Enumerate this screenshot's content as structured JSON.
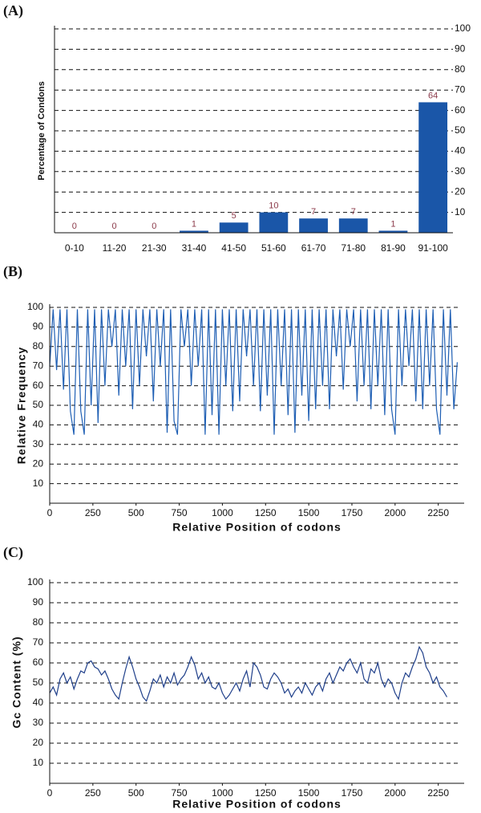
{
  "chart_data": [
    {
      "type": "bar",
      "panel": "(A)",
      "ylabel": "Percentage of Condons",
      "categories": [
        "0-10",
        "11-20",
        "21-30",
        "31-40",
        "41-50",
        "51-60",
        "61-70",
        "71-80",
        "81-90",
        "91-100"
      ],
      "values": [
        0,
        0,
        0,
        1,
        5,
        10,
        7,
        7,
        1,
        64
      ],
      "color": "#1a56a8",
      "ylim": [
        0,
        100
      ],
      "yticks": [
        10,
        20,
        30,
        40,
        50,
        60,
        70,
        80,
        90,
        100
      ],
      "grid": true,
      "ytick_side": "right"
    },
    {
      "type": "line",
      "panel": "(B)",
      "xlabel": "Relative Position  of codons",
      "ylabel": "Relative Frequency",
      "color": "#1f5fb4",
      "x": [
        0,
        20,
        40,
        60,
        80,
        100,
        120,
        140,
        160,
        180,
        200,
        220,
        240,
        260,
        280,
        300,
        320,
        340,
        360,
        380,
        400,
        420,
        440,
        460,
        480,
        500,
        520,
        540,
        560,
        580,
        600,
        620,
        640,
        660,
        680,
        700,
        720,
        740,
        760,
        780,
        800,
        820,
        840,
        860,
        880,
        900,
        920,
        940,
        960,
        980,
        1000,
        1020,
        1040,
        1060,
        1080,
        1100,
        1120,
        1140,
        1160,
        1180,
        1200,
        1220,
        1240,
        1260,
        1280,
        1300,
        1320,
        1340,
        1360,
        1380,
        1400,
        1420,
        1440,
        1460,
        1480,
        1500,
        1520,
        1540,
        1560,
        1580,
        1600,
        1620,
        1640,
        1660,
        1680,
        1700,
        1720,
        1740,
        1760,
        1780,
        1800,
        1820,
        1840,
        1860,
        1880,
        1900,
        1920,
        1940,
        1960,
        1980,
        2000,
        2020,
        2040,
        2060,
        2080,
        2100,
        2120,
        2140,
        2160,
        2180,
        2200,
        2220,
        2240,
        2260,
        2280,
        2300,
        2320,
        2340,
        2360
      ],
      "values": [
        70,
        99,
        68,
        99,
        58,
        99,
        47,
        35,
        99,
        47,
        35,
        99,
        50,
        99,
        41,
        99,
        60,
        99,
        80,
        99,
        55,
        99,
        70,
        99,
        48,
        99,
        60,
        99,
        75,
        99,
        52,
        99,
        70,
        99,
        36,
        99,
        42,
        35,
        99,
        80,
        99,
        60,
        99,
        70,
        99,
        35,
        99,
        45,
        99,
        35,
        99,
        60,
        99,
        47,
        99,
        52,
        99,
        75,
        99,
        60,
        99,
        47,
        99,
        55,
        99,
        35,
        99,
        60,
        99,
        45,
        99,
        36,
        99,
        55,
        99,
        42,
        99,
        48,
        99,
        60,
        99,
        48,
        99,
        75,
        99,
        58,
        99,
        80,
        99,
        52,
        99,
        60,
        99,
        48,
        99,
        60,
        99,
        45,
        99,
        48,
        35,
        99,
        60,
        99,
        70,
        99,
        52,
        99,
        48,
        99,
        60,
        99,
        48,
        35,
        99,
        55,
        99,
        48,
        72
      ],
      "xlim": [
        0,
        2400
      ],
      "ylim": [
        0,
        100
      ],
      "xticks": [
        0,
        250,
        500,
        750,
        1000,
        1250,
        1500,
        1750,
        2000,
        2250
      ],
      "yticks": [
        10,
        20,
        30,
        40,
        50,
        60,
        70,
        80,
        90,
        100
      ],
      "grid": true
    },
    {
      "type": "line",
      "panel": "(C)",
      "xlabel": "Relative Position  of codons",
      "ylabel": "Gc Content (%)",
      "color": "#1f3f8a",
      "x": [
        0,
        20,
        40,
        60,
        80,
        100,
        120,
        140,
        160,
        180,
        200,
        220,
        240,
        260,
        280,
        300,
        320,
        340,
        360,
        380,
        400,
        420,
        440,
        460,
        480,
        500,
        520,
        540,
        560,
        580,
        600,
        620,
        640,
        660,
        680,
        700,
        720,
        740,
        760,
        780,
        800,
        820,
        840,
        860,
        880,
        900,
        920,
        940,
        960,
        980,
        1000,
        1020,
        1040,
        1060,
        1080,
        1100,
        1120,
        1140,
        1160,
        1180,
        1200,
        1220,
        1240,
        1260,
        1280,
        1300,
        1320,
        1340,
        1360,
        1380,
        1400,
        1420,
        1440,
        1460,
        1480,
        1500,
        1520,
        1540,
        1560,
        1580,
        1600,
        1620,
        1640,
        1660,
        1680,
        1700,
        1720,
        1740,
        1760,
        1780,
        1800,
        1820,
        1840,
        1860,
        1880,
        1900,
        1920,
        1940,
        1960,
        1980,
        2000,
        2020,
        2040,
        2060,
        2080,
        2100,
        2120,
        2140,
        2160,
        2180,
        2200,
        2220,
        2240,
        2260,
        2280,
        2300
      ],
      "values": [
        45,
        48,
        44,
        52,
        55,
        50,
        53,
        47,
        52,
        56,
        55,
        60,
        61,
        58,
        57,
        54,
        56,
        52,
        47,
        44,
        42,
        50,
        57,
        63,
        58,
        52,
        48,
        43,
        41,
        46,
        52,
        50,
        54,
        48,
        53,
        50,
        55,
        49,
        52,
        54,
        58,
        63,
        59,
        52,
        55,
        50,
        53,
        48,
        47,
        50,
        45,
        42,
        44,
        47,
        50,
        46,
        52,
        56,
        48,
        60,
        58,
        54,
        48,
        47,
        52,
        55,
        53,
        50,
        45,
        47,
        43,
        46,
        48,
        45,
        50,
        47,
        44,
        48,
        50,
        46,
        52,
        55,
        50,
        54,
        58,
        56,
        60,
        62,
        58,
        55,
        60,
        52,
        50,
        57,
        55,
        60,
        52,
        48,
        52,
        50,
        45,
        42,
        50,
        55,
        53,
        58,
        62,
        68,
        65,
        58,
        55,
        50,
        53,
        48,
        46,
        43
      ],
      "xlim": [
        0,
        2400
      ],
      "ylim": [
        0,
        100
      ],
      "xticks": [
        0,
        250,
        500,
        750,
        1000,
        1250,
        1500,
        1750,
        2000,
        2250
      ],
      "yticks": [
        10,
        20,
        30,
        40,
        50,
        60,
        70,
        80,
        90,
        100
      ],
      "grid": true
    }
  ]
}
